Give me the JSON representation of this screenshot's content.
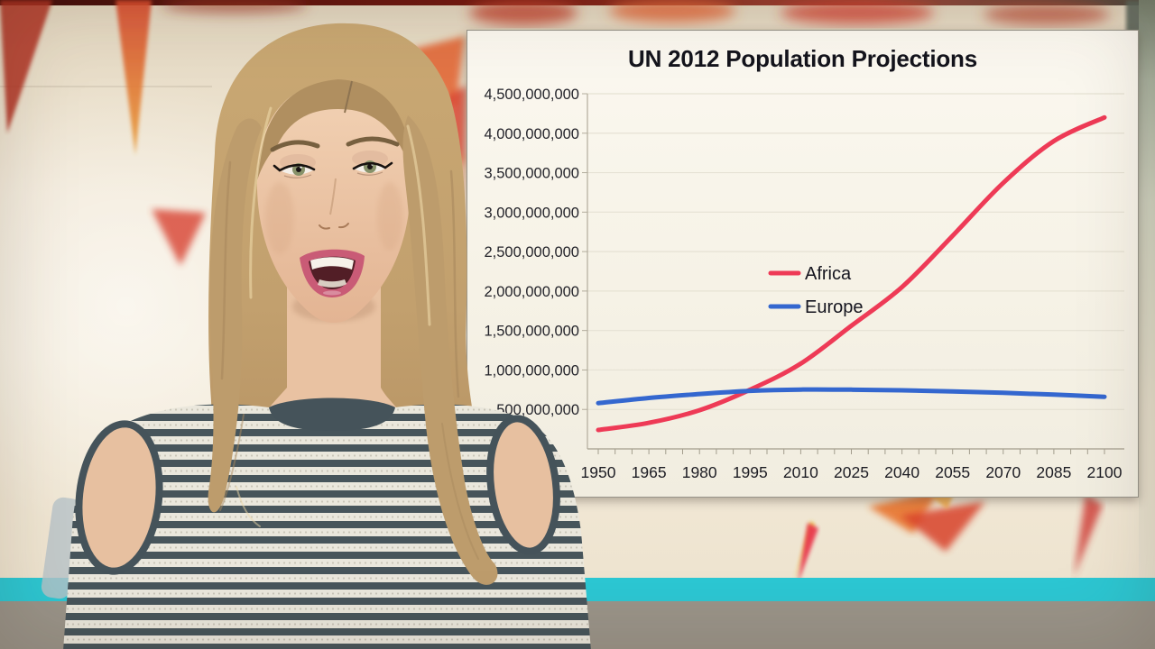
{
  "scene": {
    "description": "Video frame: presenter in striped cold-shoulder sweater beside a slide showing a population projection line chart",
    "teal_stripe_color": "#2cc7d3",
    "floor_color": "#9a9489",
    "wall_color": "#f2e9d8",
    "panel_color": "#f8f4e9"
  },
  "chart": {
    "title": "UN 2012 Population Projections",
    "y_axis_labels": [
      "4,500,000,000",
      "4,000,000,000",
      "3,500,000,000",
      "3,000,000,000",
      "2,500,000,000",
      "2,000,000,000",
      "1,500,000,000",
      "1,000,000,000",
      "500,000,000"
    ],
    "x_axis_labels": [
      "1950",
      "1965",
      "1980",
      "1995",
      "2010",
      "2025",
      "2040",
      "2055",
      "2070",
      "2085",
      "2100"
    ],
    "legend": [
      {
        "label": "Africa",
        "color": "#ee3a56"
      },
      {
        "label": "Europe",
        "color": "#3467cf"
      }
    ],
    "title_color": "#14141c",
    "axis_text_color": "#23232a"
  },
  "chart_data": {
    "type": "line",
    "title": "UN 2012 Population Projections",
    "x": [
      1950,
      1965,
      1980,
      1995,
      2010,
      2025,
      2040,
      2055,
      2070,
      2085,
      2100
    ],
    "series": [
      {
        "name": "Africa",
        "color": "#ee3a56",
        "values": [
          240000000,
          330000000,
          490000000,
          750000000,
          1080000000,
          1560000000,
          2050000000,
          2700000000,
          3370000000,
          3900000000,
          4200000000
        ]
      },
      {
        "name": "Europe",
        "color": "#3467cf",
        "values": [
          580000000,
          645000000,
          695000000,
          735000000,
          752000000,
          750000000,
          742000000,
          728000000,
          710000000,
          688000000,
          660000000
        ]
      }
    ],
    "xlim": [
      1950,
      2100
    ],
    "ylim": [
      0,
      4500000000
    ],
    "y_tick_step": 500000000,
    "x_tick_step": 15,
    "x_minor_tick_step": 5,
    "grid": "horizontal-faint",
    "legend_position": "inside-center-left"
  }
}
